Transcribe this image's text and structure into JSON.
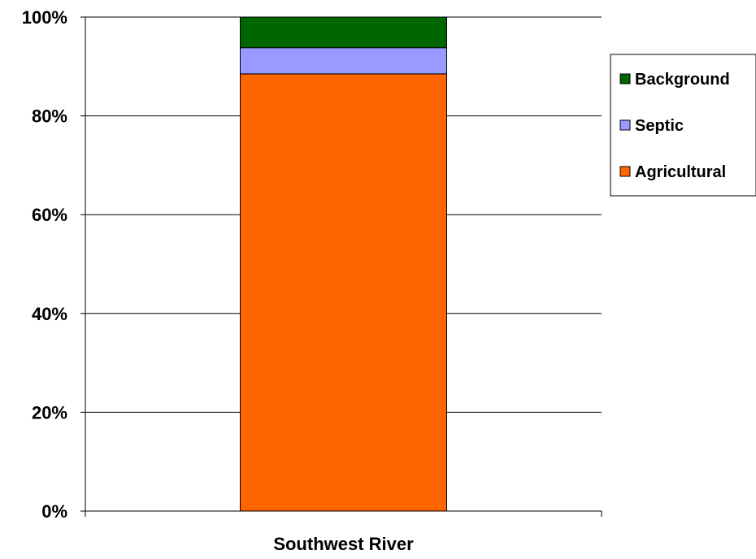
{
  "chart_data": {
    "type": "bar",
    "stacked": true,
    "percent_stacked": true,
    "categories": [
      "Southwest River"
    ],
    "series": [
      {
        "name": "Agricultural",
        "values": [
          88.5
        ],
        "color": "#FF6600"
      },
      {
        "name": "Septic",
        "values": [
          5.3
        ],
        "color": "#9999FF"
      },
      {
        "name": "Background",
        "values": [
          6.2
        ],
        "color": "#006600"
      }
    ],
    "yticks": [
      "0%",
      "20%",
      "40%",
      "60%",
      "80%",
      "100%"
    ],
    "ylim": [
      0,
      100
    ],
    "grid": true,
    "legend_position": "right",
    "legend_order": [
      "Background",
      "Septic",
      "Agricultural"
    ]
  }
}
